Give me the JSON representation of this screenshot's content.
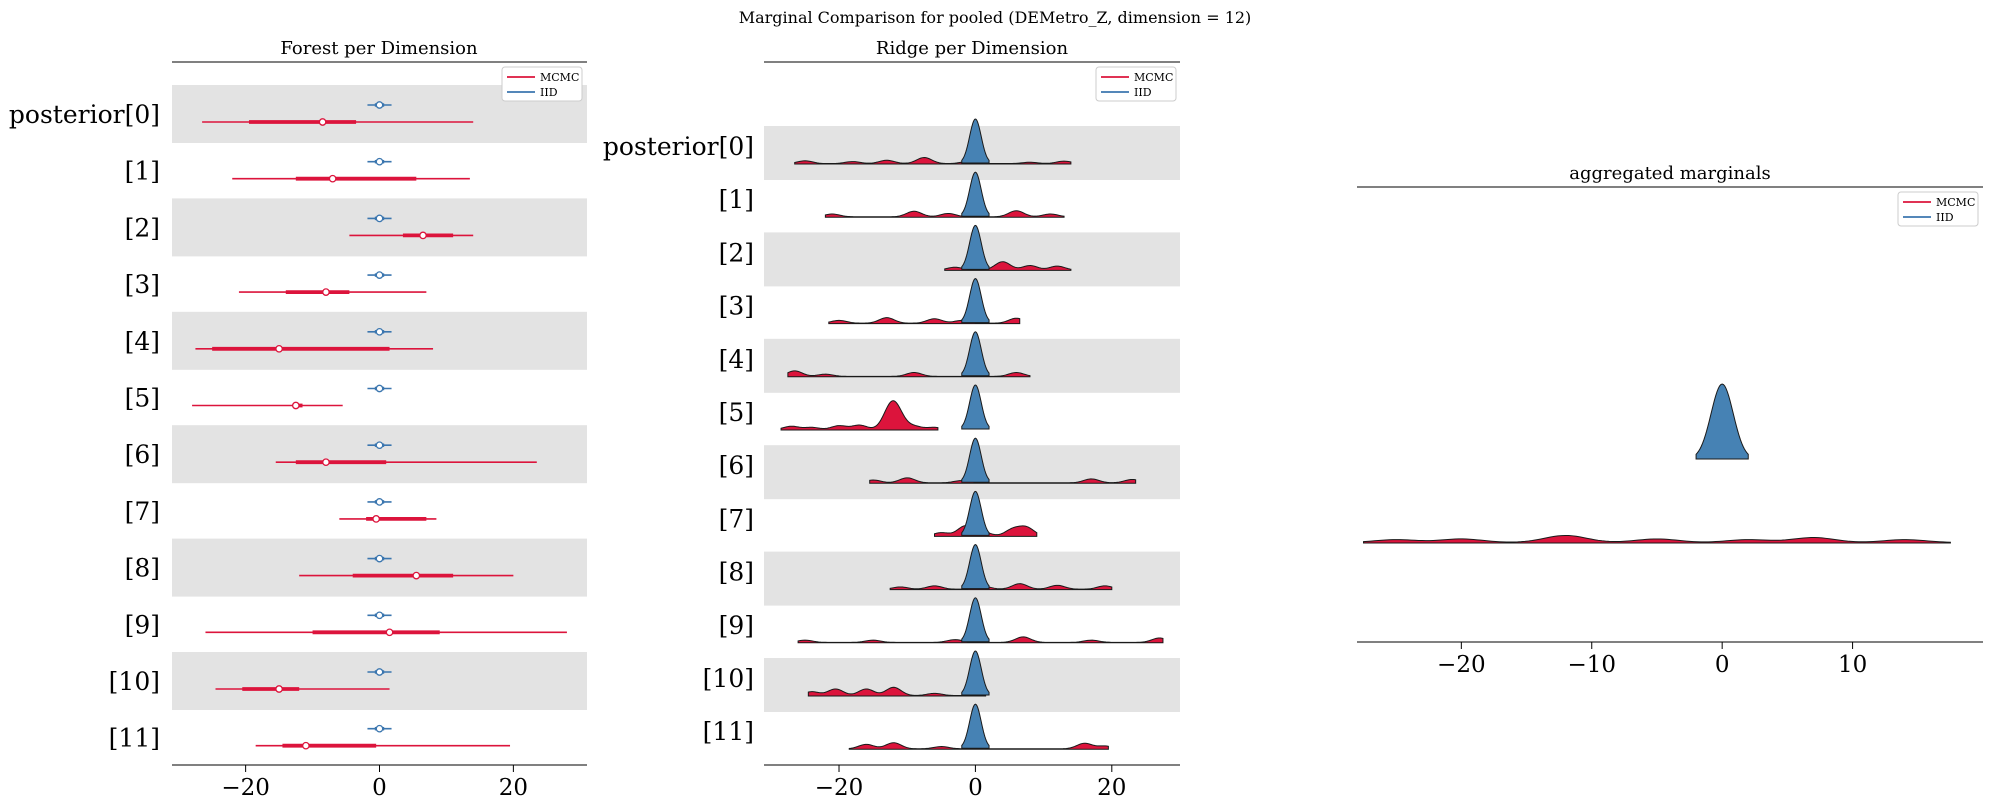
{
  "figure": {
    "suptitle": "Marginal Comparison for pooled (DEMetro_Z, dimension = 12)"
  },
  "colors": {
    "mcmc": "#dc143c",
    "iid": "#3b76af",
    "iid_fill": "#4682b4",
    "band": "#e3e3e3"
  },
  "legend": {
    "mcmc": "MCMC",
    "iid": "IID"
  },
  "chart_data": [
    {
      "type": "forest",
      "title": "Forest per Dimension",
      "xlim": [
        -31,
        31
      ],
      "xticks": [
        -20,
        0,
        20
      ],
      "xtick_labels": [
        "−20",
        "0",
        "20"
      ],
      "grid": false,
      "alternating_bands": true,
      "legend_position": "top-right",
      "categories": [
        "posterior[0]",
        "[1]",
        "[2]",
        "[3]",
        "[4]",
        "[5]",
        "[6]",
        "[7]",
        "[8]",
        "[9]",
        "[10]",
        "[11]"
      ],
      "series": [
        {
          "name": "MCMC",
          "color": "#dc143c",
          "hdi94": [
            [
              -26.5,
              14
            ],
            [
              -22,
              13.5
            ],
            [
              -4.5,
              14
            ],
            [
              -21,
              7
            ],
            [
              -27.5,
              8
            ],
            [
              -28,
              -5.5
            ],
            [
              -15.5,
              23.5
            ],
            [
              -6,
              8.5
            ],
            [
              -12,
              20
            ],
            [
              -26,
              28
            ],
            [
              -24.5,
              1.5
            ],
            [
              -18.5,
              19.5
            ]
          ],
          "iqr": [
            [
              -19.5,
              -3.5
            ],
            [
              -12.5,
              5.5
            ],
            [
              3.5,
              11
            ],
            [
              -14,
              -4.5
            ],
            [
              -25,
              1.5
            ],
            [
              -13,
              -11.5
            ],
            [
              -12.5,
              1
            ],
            [
              -2,
              7
            ],
            [
              -4,
              11
            ],
            [
              -10,
              9
            ],
            [
              -20.5,
              -12
            ],
            [
              -14.5,
              -0.5
            ]
          ],
          "median": [
            -8.5,
            -7,
            6.5,
            -8,
            -15,
            -12.5,
            -8,
            -0.5,
            5.5,
            1.5,
            -15,
            -11
          ]
        },
        {
          "name": "IID",
          "color": "#3b76af",
          "hdi94": [
            [
              -1.8,
              1.8
            ],
            [
              -1.8,
              1.8
            ],
            [
              -1.8,
              1.8
            ],
            [
              -1.8,
              1.8
            ],
            [
              -1.8,
              1.8
            ],
            [
              -1.8,
              1.8
            ],
            [
              -1.8,
              1.8
            ],
            [
              -1.8,
              1.8
            ],
            [
              -1.8,
              1.8
            ],
            [
              -1.8,
              1.8
            ],
            [
              -1.8,
              1.8
            ],
            [
              -1.8,
              1.8
            ]
          ],
          "iqr": [
            [
              -0.7,
              0.7
            ],
            [
              -0.7,
              0.7
            ],
            [
              -0.7,
              0.7
            ],
            [
              -0.7,
              0.7
            ],
            [
              -0.7,
              0.7
            ],
            [
              -0.7,
              0.7
            ],
            [
              -0.7,
              0.7
            ],
            [
              -0.7,
              0.7
            ],
            [
              -0.7,
              0.7
            ],
            [
              -0.7,
              0.7
            ],
            [
              -0.7,
              0.7
            ],
            [
              -0.7,
              0.7
            ]
          ],
          "median": [
            0,
            0,
            0,
            0,
            0,
            0,
            0,
            0,
            0,
            0,
            0,
            0
          ]
        }
      ]
    },
    {
      "type": "ridgeline",
      "title": "Ridge per Dimension",
      "xlim": [
        -31,
        30
      ],
      "xticks": [
        -20,
        0,
        20
      ],
      "xtick_labels": [
        "−20",
        "0",
        "20"
      ],
      "grid": false,
      "alternating_bands": true,
      "legend_position": "top-right",
      "categories": [
        "posterior[0]",
        "[1]",
        "[2]",
        "[3]",
        "[4]",
        "[5]",
        "[6]",
        "[7]",
        "[8]",
        "[9]",
        "[10]",
        "[11]"
      ],
      "series": [
        {
          "name": "MCMC",
          "color": "#dc143c",
          "ranges": [
            [
              -26.5,
              14
            ],
            [
              -22,
              13
            ],
            [
              -4.5,
              14
            ],
            [
              -21.5,
              6.5
            ],
            [
              -27.5,
              8
            ],
            [
              -28.5,
              -5.5
            ],
            [
              -15.5,
              23.5
            ],
            [
              -6,
              9
            ],
            [
              -12.5,
              20
            ],
            [
              -26,
              27.5
            ],
            [
              -24.5,
              1.5
            ],
            [
              -18.5,
              19.5
            ]
          ],
          "peaks": [
            [
              [
                -25,
                0.25
              ],
              [
                -18,
                0.18
              ],
              [
                -13,
                0.3
              ],
              [
                -7.5,
                0.55
              ],
              [
                -1,
                0.2
              ],
              [
                8,
                0.12
              ],
              [
                13,
                0.22
              ]
            ],
            [
              [
                -21,
                0.25
              ],
              [
                -9,
                0.5
              ],
              [
                -4,
                0.3
              ],
              [
                6,
                0.55
              ],
              [
                11,
                0.25
              ]
            ],
            [
              [
                -3,
                0.25
              ],
              [
                4,
                0.75
              ],
              [
                8,
                0.4
              ],
              [
                12,
                0.35
              ]
            ],
            [
              [
                -20,
                0.25
              ],
              [
                -13,
                0.5
              ],
              [
                -6,
                0.4
              ],
              [
                -2,
                0.25
              ],
              [
                6,
                0.45
              ]
            ],
            [
              [
                -26.5,
                0.5
              ],
              [
                -22,
                0.2
              ],
              [
                -9,
                0.35
              ],
              [
                6,
                0.35
              ]
            ],
            [
              [
                -27,
                0.3
              ],
              [
                -24,
                0.2
              ],
              [
                -20,
                0.35
              ],
              [
                -17,
                0.4
              ],
              [
                -12.5,
                1.6
              ],
              [
                -11.5,
                1.3
              ],
              [
                -9,
                0.3
              ],
              [
                -6,
                0.2
              ]
            ],
            [
              [
                -15,
                0.25
              ],
              [
                -10,
                0.45
              ],
              [
                -2,
                0.2
              ],
              [
                17,
                0.35
              ],
              [
                23,
                0.3
              ]
            ],
            [
              [
                -5,
                0.3
              ],
              [
                -1.5,
                0.9
              ],
              [
                1,
                0.4
              ],
              [
                5.5,
                0.6
              ],
              [
                7.5,
                0.75
              ]
            ],
            [
              [
                -11,
                0.2
              ],
              [
                -6,
                0.3
              ],
              [
                1,
                0.3
              ],
              [
                6.5,
                0.5
              ],
              [
                12,
                0.35
              ],
              [
                19,
                0.3
              ]
            ],
            [
              [
                -25,
                0.2
              ],
              [
                -15,
                0.2
              ],
              [
                -3,
                0.25
              ],
              [
                7,
                0.5
              ],
              [
                17,
                0.2
              ],
              [
                27,
                0.4
              ]
            ],
            [
              [
                -24,
                0.35
              ],
              [
                -20.5,
                0.6
              ],
              [
                -16,
                0.6
              ],
              [
                -12,
                0.75
              ],
              [
                -6,
                0.2
              ]
            ],
            [
              [
                -16,
                0.4
              ],
              [
                -12,
                0.55
              ],
              [
                -5,
                0.2
              ],
              [
                16,
                0.5
              ],
              [
                19,
                0.25
              ]
            ]
          ]
        },
        {
          "name": "IID",
          "color": "#4682b4",
          "ranges": [
            [
              -2,
              2
            ],
            [
              -2,
              2
            ],
            [
              -2,
              2
            ],
            [
              -2,
              2
            ],
            [
              -2,
              2
            ],
            [
              -2,
              2
            ],
            [
              -2,
              2
            ],
            [
              -2,
              2
            ],
            [
              -2,
              2
            ],
            [
              -2,
              2
            ],
            [
              -2,
              2
            ],
            [
              -2,
              2
            ]
          ]
        }
      ]
    },
    {
      "type": "ridgeline",
      "title": "aggregated marginals",
      "xlim": [
        -28,
        20
      ],
      "xticks": [
        -20,
        -10,
        0,
        10
      ],
      "xtick_labels": [
        "−20",
        "−10",
        "0",
        "10"
      ],
      "grid": false,
      "legend_position": "top-right",
      "series": [
        {
          "name": "MCMC",
          "color": "#dc143c",
          "range": [
            -27.5,
            17.5
          ],
          "peaks": [
            [
              -25,
              0.2
            ],
            [
              -20,
              0.25
            ],
            [
              -12,
              0.5
            ],
            [
              -5,
              0.25
            ],
            [
              2,
              0.2
            ],
            [
              7,
              0.35
            ],
            [
              14,
              0.2
            ]
          ]
        },
        {
          "name": "IID",
          "color": "#4682b4",
          "range": [
            -2,
            2
          ]
        }
      ]
    }
  ]
}
